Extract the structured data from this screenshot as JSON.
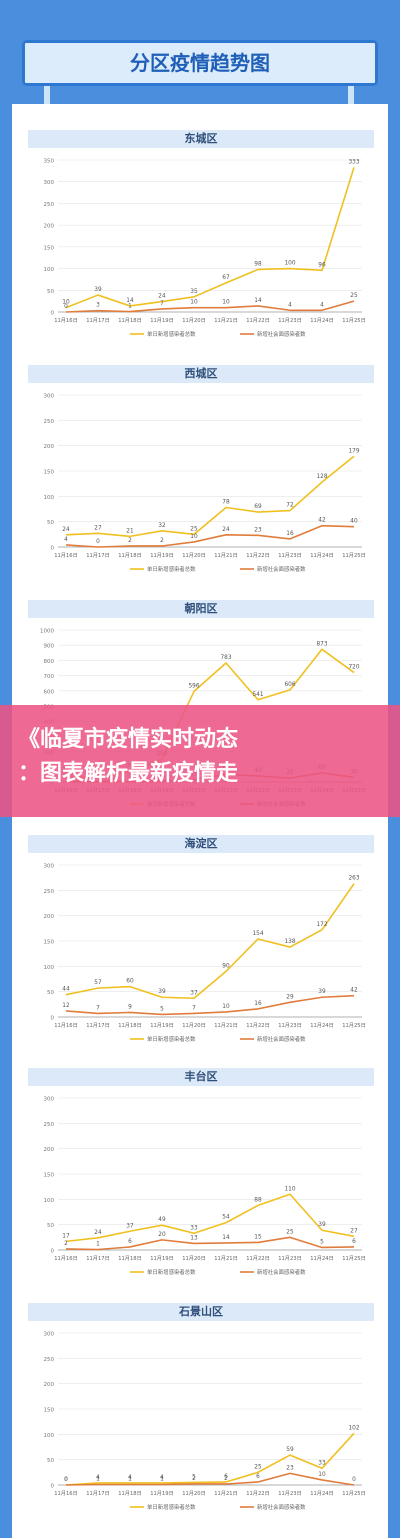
{
  "page": {
    "title": "分区疫情趋势图"
  },
  "banner": {
    "line1": "《临夏市疫情实时动态",
    "line2": "：图表解析最新疫情走"
  },
  "colors": {
    "s1": "#f0c020",
    "s2": "#e07c3c",
    "grid": "#e4e4e4",
    "axis": "#9a9a9a"
  },
  "chart_data": [
    {
      "type": "line",
      "title": "东城区",
      "categories": [
        "11月16日",
        "11月17日",
        "11月18日",
        "11月19日",
        "11月20日",
        "11月21日",
        "11月22日",
        "11月23日",
        "11月24日",
        "11月25日"
      ],
      "ylim": [
        0,
        350
      ],
      "yticks": [
        0,
        50,
        100,
        150,
        200,
        250,
        300,
        350
      ],
      "series": [
        {
          "name": "单日新增感染者总数",
          "values": [
            10,
            39,
            14,
            24,
            35,
            67,
            98,
            100,
            96,
            333
          ]
        },
        {
          "name": "新增社会面感染者数",
          "values": [
            0,
            3,
            1,
            7,
            10,
            10,
            14,
            4,
            4,
            25
          ]
        }
      ]
    },
    {
      "type": "line",
      "title": "西城区",
      "categories": [
        "11月16日",
        "11月17日",
        "11月18日",
        "11月19日",
        "11月20日",
        "11月21日",
        "11月22日",
        "11月23日",
        "11月24日",
        "11月25日"
      ],
      "ylim": [
        0,
        300
      ],
      "yticks": [
        0,
        50,
        100,
        150,
        200,
        250,
        300
      ],
      "series": [
        {
          "name": "单日新增感染者总数",
          "values": [
            24,
            27,
            21,
            32,
            25,
            78,
            69,
            72,
            128,
            179
          ]
        },
        {
          "name": "新增社会面感染者数",
          "values": [
            4,
            0,
            2,
            2,
            10,
            24,
            23,
            16,
            42,
            40
          ]
        }
      ]
    },
    {
      "type": "line",
      "title": "朝阳区",
      "categories": [
        "11月16日",
        "11月17日",
        "11月18日",
        "11月19日",
        "11月20日",
        "11月21日",
        "11月22日",
        "11月23日",
        "11月24日",
        "11月25日"
      ],
      "ylim": [
        0,
        1000
      ],
      "yticks": [
        0,
        100,
        200,
        300,
        400,
        500,
        600,
        700,
        800,
        900,
        1000
      ],
      "series": [
        {
          "name": "单日新增感染者总数",
          "values": [
            38,
            28,
            70,
            150,
            596,
            783,
            541,
            606,
            873,
            720
          ]
        },
        {
          "name": "新增社会面感染者数",
          "values": [
            5,
            2,
            3,
            8,
            15,
            50,
            40,
            25,
            60,
            30
          ]
        }
      ]
    },
    {
      "type": "line",
      "title": "海淀区",
      "categories": [
        "11月16日",
        "11月17日",
        "11月18日",
        "11月19日",
        "11月20日",
        "11月21日",
        "11月22日",
        "11月23日",
        "11月24日",
        "11月25日"
      ],
      "ylim": [
        0,
        300
      ],
      "yticks": [
        0,
        50,
        100,
        150,
        200,
        250,
        300
      ],
      "series": [
        {
          "name": "单日新增感染者总数",
          "values": [
            44,
            57,
            60,
            39,
            37,
            90,
            154,
            138,
            172,
            263
          ]
        },
        {
          "name": "新增社会面感染者数",
          "values": [
            12,
            7,
            9,
            5,
            7,
            10,
            16,
            29,
            39,
            42
          ]
        }
      ]
    },
    {
      "type": "line",
      "title": "丰台区",
      "categories": [
        "11月16日",
        "11月17日",
        "11月18日",
        "11月19日",
        "11月20日",
        "11月21日",
        "11月22日",
        "11月23日",
        "11月24日",
        "11月25日"
      ],
      "ylim": [
        0,
        300
      ],
      "yticks": [
        0,
        50,
        100,
        150,
        200,
        250,
        300
      ],
      "series": [
        {
          "name": "单日新增感染者总数",
          "values": [
            17,
            24,
            37,
            49,
            33,
            54,
            88,
            110,
            39,
            27
          ]
        },
        {
          "name": "新增社会面感染者数",
          "values": [
            2,
            1,
            6,
            20,
            13,
            14,
            15,
            25,
            5,
            6
          ]
        }
      ]
    },
    {
      "type": "line",
      "title": "石景山区",
      "categories": [
        "11月16日",
        "11月17日",
        "11月18日",
        "11月19日",
        "11月20日",
        "11月21日",
        "11月22日",
        "11月23日",
        "11月24日",
        "11月25日"
      ],
      "ylim": [
        0,
        300
      ],
      "yticks": [
        0,
        50,
        100,
        150,
        200,
        250,
        300
      ],
      "series": [
        {
          "name": "单日新增感染者总数",
          "values": [
            0,
            4,
            4,
            4,
            5,
            6,
            25,
            59,
            33,
            102
          ]
        },
        {
          "name": "新增社会面感染者数",
          "values": [
            0,
            1,
            1,
            1,
            2,
            2,
            6,
            23,
            10,
            0
          ]
        }
      ]
    }
  ]
}
